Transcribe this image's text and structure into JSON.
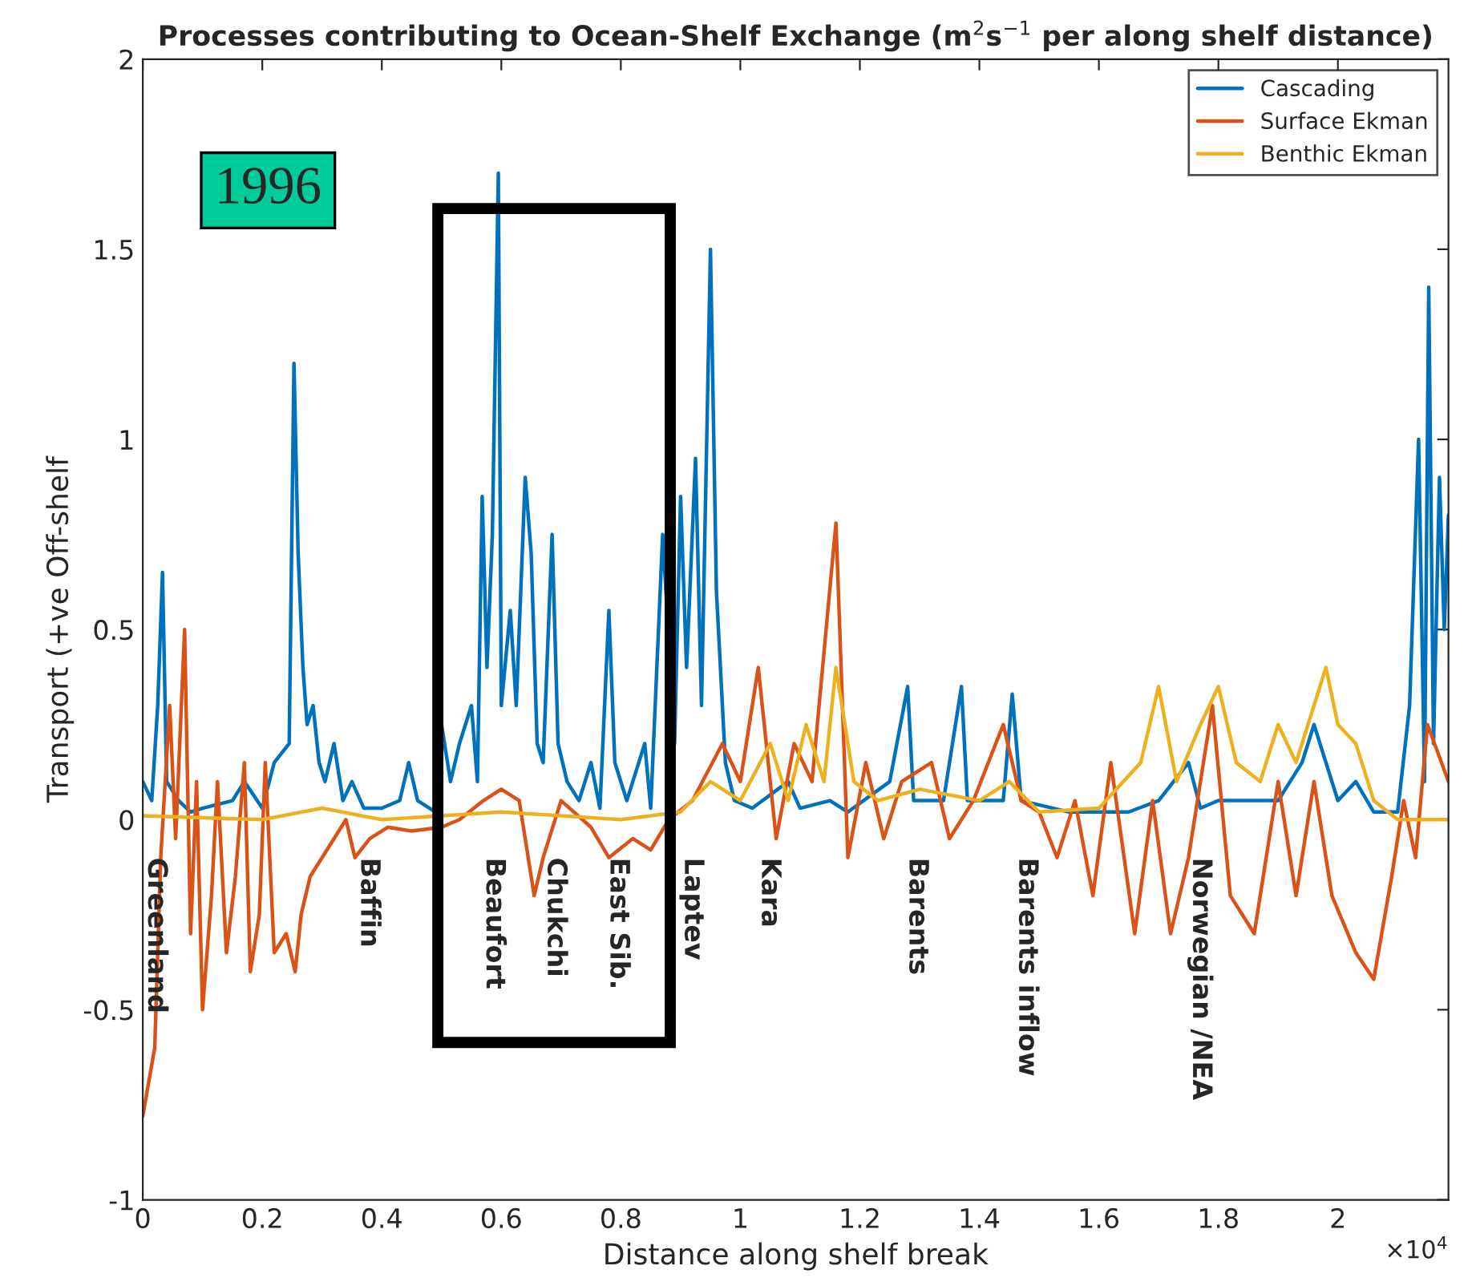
{
  "chart_data": {
    "type": "line",
    "title": "Processes contributing to Ocean-Shelf Exchange (m$^{2}$s$^{−1}$ per along shelf distance)",
    "xlabel": "Distance along shelf break",
    "ylabel": "Transport (+ve Off-shelf",
    "xlim": [
      0,
      2.185
    ],
    "ylim": [
      -1,
      2
    ],
    "xticks": [
      0,
      0.2,
      0.4,
      0.6,
      0.8,
      1,
      1.2,
      1.4,
      1.6,
      1.8,
      2
    ],
    "yticks": [
      -1,
      -0.5,
      0,
      0.5,
      1,
      1.5,
      2
    ],
    "grid": false,
    "legend": "top right",
    "series": [
      {
        "name": "Cascading",
        "color": "#0072bd",
        "x": [
          0,
          0.015,
          0.025,
          0.033,
          0.04,
          0.06,
          0.08,
          0.1,
          0.15,
          0.17,
          0.2,
          0.22,
          0.245,
          0.253,
          0.26,
          0.268,
          0.275,
          0.285,
          0.295,
          0.305,
          0.32,
          0.335,
          0.35,
          0.37,
          0.4,
          0.43,
          0.445,
          0.46,
          0.49,
          0.5,
          0.515,
          0.53,
          0.55,
          0.56,
          0.568,
          0.576,
          0.585,
          0.595,
          0.6,
          0.615,
          0.625,
          0.64,
          0.65,
          0.66,
          0.67,
          0.685,
          0.695,
          0.71,
          0.73,
          0.75,
          0.765,
          0.78,
          0.79,
          0.81,
          0.84,
          0.85,
          0.87,
          0.89,
          0.9,
          0.91,
          0.925,
          0.935,
          0.95,
          0.96,
          0.975,
          0.99,
          1.02,
          1.08,
          1.1,
          1.15,
          1.18,
          1.25,
          1.28,
          1.29,
          1.34,
          1.37,
          1.38,
          1.44,
          1.455,
          1.47,
          1.55,
          1.65,
          1.7,
          1.75,
          1.77,
          1.8,
          1.9,
          1.94,
          1.96,
          1.98,
          2.0,
          2.03,
          2.06,
          2.1,
          2.12,
          2.135,
          2.145,
          2.152,
          2.16,
          2.17,
          2.178,
          2.185
        ],
        "values": [
          0.1,
          0.05,
          0.3,
          0.65,
          0.1,
          0.05,
          0.02,
          0.03,
          0.05,
          0.1,
          0.03,
          0.15,
          0.2,
          1.2,
          0.7,
          0.4,
          0.25,
          0.3,
          0.15,
          0.1,
          0.2,
          0.05,
          0.1,
          0.03,
          0.03,
          0.05,
          0.15,
          0.05,
          0.02,
          0.25,
          0.1,
          0.2,
          0.3,
          0.1,
          0.85,
          0.4,
          0.75,
          1.7,
          0.3,
          0.55,
          0.3,
          0.9,
          0.7,
          0.2,
          0.15,
          0.75,
          0.2,
          0.1,
          0.05,
          0.15,
          0.03,
          0.55,
          0.15,
          0.05,
          0.2,
          0.03,
          0.75,
          0.2,
          0.85,
          0.4,
          0.95,
          0.3,
          1.5,
          0.6,
          0.15,
          0.05,
          0.03,
          0.1,
          0.03,
          0.05,
          0.02,
          0.1,
          0.35,
          0.05,
          0.05,
          0.35,
          0.05,
          0.05,
          0.33,
          0.05,
          0.02,
          0.02,
          0.05,
          0.15,
          0.03,
          0.05,
          0.05,
          0.15,
          0.25,
          0.15,
          0.05,
          0.1,
          0.02,
          0.02,
          0.3,
          1.0,
          0.1,
          1.4,
          0.2,
          0.9,
          0.5,
          0.8
        ]
      },
      {
        "name": "Surface Ekman",
        "color": "#d95319",
        "x": [
          0,
          0.02,
          0.03,
          0.045,
          0.055,
          0.07,
          0.08,
          0.09,
          0.1,
          0.115,
          0.125,
          0.14,
          0.155,
          0.17,
          0.18,
          0.195,
          0.205,
          0.22,
          0.24,
          0.255,
          0.265,
          0.28,
          0.3,
          0.32,
          0.34,
          0.355,
          0.38,
          0.41,
          0.45,
          0.5,
          0.53,
          0.57,
          0.6,
          0.63,
          0.655,
          0.67,
          0.7,
          0.75,
          0.78,
          0.82,
          0.85,
          0.88,
          0.92,
          0.97,
          1.0,
          1.03,
          1.06,
          1.09,
          1.12,
          1.16,
          1.18,
          1.21,
          1.24,
          1.27,
          1.32,
          1.35,
          1.39,
          1.44,
          1.47,
          1.5,
          1.53,
          1.56,
          1.59,
          1.62,
          1.66,
          1.69,
          1.72,
          1.75,
          1.79,
          1.82,
          1.86,
          1.9,
          1.93,
          1.96,
          1.99,
          2.03,
          2.06,
          2.09,
          2.11,
          2.13,
          2.15,
          2.185
        ],
        "values": [
          -0.78,
          -0.6,
          -0.1,
          0.3,
          -0.05,
          0.5,
          -0.3,
          0.1,
          -0.5,
          -0.2,
          0.1,
          -0.35,
          -0.15,
          0.15,
          -0.4,
          -0.25,
          0.15,
          -0.35,
          -0.3,
          -0.4,
          -0.25,
          -0.15,
          -0.1,
          -0.05,
          0,
          -0.1,
          -0.05,
          -0.02,
          -0.03,
          -0.02,
          0,
          0.05,
          0.08,
          0.05,
          -0.2,
          -0.1,
          0.05,
          -0.02,
          -0.1,
          -0.05,
          -0.08,
          0,
          0.05,
          0.2,
          0.1,
          0.4,
          -0.05,
          0.2,
          0.1,
          0.78,
          -0.1,
          0.15,
          -0.05,
          0.1,
          0.15,
          -0.05,
          0.05,
          0.25,
          0.05,
          0.02,
          -0.1,
          0.05,
          -0.2,
          0.15,
          -0.3,
          0.05,
          -0.3,
          -0.1,
          0.3,
          -0.2,
          -0.3,
          0.1,
          -0.2,
          0.1,
          -0.2,
          -0.35,
          -0.42,
          -0.15,
          0.05,
          -0.1,
          0.25,
          0.1
        ]
      },
      {
        "name": "Benthic Ekman",
        "color": "#edb120",
        "x": [
          0,
          0.2,
          0.3,
          0.4,
          0.6,
          0.8,
          0.9,
          0.95,
          1.0,
          1.05,
          1.08,
          1.11,
          1.14,
          1.16,
          1.19,
          1.23,
          1.3,
          1.4,
          1.45,
          1.5,
          1.6,
          1.67,
          1.7,
          1.73,
          1.77,
          1.8,
          1.83,
          1.87,
          1.9,
          1.93,
          1.96,
          1.98,
          2.0,
          2.03,
          2.06,
          2.1,
          2.185
        ],
        "values": [
          0.01,
          0,
          0.03,
          0,
          0.02,
          0,
          0.02,
          0.1,
          0.05,
          0.2,
          0.05,
          0.25,
          0.1,
          0.4,
          0.1,
          0.05,
          0.08,
          0.05,
          0.1,
          0.02,
          0.03,
          0.15,
          0.35,
          0.1,
          0.25,
          0.35,
          0.15,
          0.1,
          0.25,
          0.15,
          0.3,
          0.4,
          0.25,
          0.2,
          0.05,
          0,
          0
        ]
      }
    ],
    "annotations": [
      "×10$^{4}$",
      "1996",
      "Greenland",
      "Baffin",
      "Beaufort",
      "Chukchi",
      "East Sib.",
      "Laptev",
      "Kara",
      "Barents",
      "Barents inflow",
      "Norwegian /NEA"
    ]
  }
}
